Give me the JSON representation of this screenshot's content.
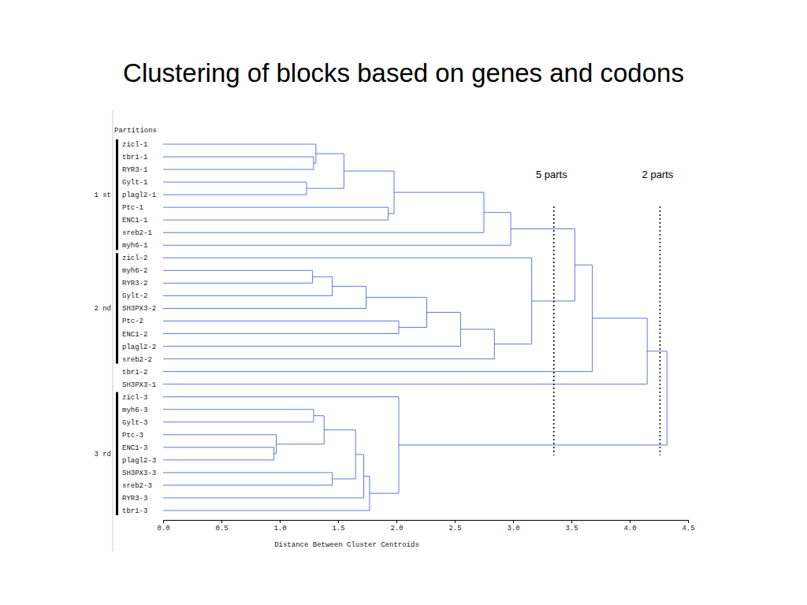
{
  "chart_data": {
    "type": "dendrogram",
    "title": "Clustering of blocks based on genes and codons",
    "x_label": "Distance Between Cluster Centroids",
    "color": "#6478d8",
    "xlim": [
      0,
      4.5
    ],
    "xticks": [
      {
        "value": 0,
        "label": "0.0"
      },
      {
        "value": 0.5,
        "label": "0.5"
      },
      {
        "value": 1,
        "label": "1.0"
      },
      {
        "value": 1.5,
        "label": "1.5"
      },
      {
        "value": 2,
        "label": "2.0"
      },
      {
        "value": 2.5,
        "label": "2.5"
      },
      {
        "value": 3,
        "label": "3.0"
      },
      {
        "value": 3.5,
        "label": "3.5"
      },
      {
        "value": 4,
        "label": "4.0"
      },
      {
        "value": 4.5,
        "label": "4.5"
      }
    ],
    "leaves": [
      "zicl-1",
      "tbr1-1",
      "RYR3-1",
      "Gylt-1",
      "plagl2-1",
      "Ptc-1",
      "ENC1-1",
      "sreb2-1",
      "myh6-1",
      "zicl-2",
      "myh6-2",
      "RYR3-2",
      "Gylt-2",
      "SH3PX3-2",
      "Ptc-2",
      "ENC1-2",
      "plagl2-2",
      "sreb2-2",
      "tbr1-2",
      "SH3PX3-1",
      "zicl-3",
      "myh6-3",
      "Gylt-3",
      "Ptc-3",
      "ENC1-3",
      "plagl2-3",
      "SH3PX3-3",
      "sreb2-3",
      "RYR3-3",
      "tbr1-3"
    ],
    "merges": [
      {
        "left": 1,
        "right": 2,
        "height": 1.29
      },
      {
        "left": 0,
        "right": 30,
        "height": 1.31
      },
      {
        "left": 3,
        "right": 4,
        "height": 1.23
      },
      {
        "left": 31,
        "right": 32,
        "height": 1.55
      },
      {
        "left": 5,
        "right": 6,
        "height": 1.93
      },
      {
        "left": 33,
        "right": 34,
        "height": 1.98
      },
      {
        "left": 35,
        "right": 7,
        "height": 2.75
      },
      {
        "left": 36,
        "right": 8,
        "height": 2.98
      },
      {
        "left": 10,
        "right": 11,
        "height": 1.28
      },
      {
        "left": 38,
        "right": 12,
        "height": 1.45
      },
      {
        "left": 39,
        "right": 13,
        "height": 1.74
      },
      {
        "left": 14,
        "right": 15,
        "height": 2.02
      },
      {
        "left": 40,
        "right": 41,
        "height": 2.26
      },
      {
        "left": 42,
        "right": 16,
        "height": 2.55
      },
      {
        "left": 43,
        "right": 17,
        "height": 2.84
      },
      {
        "left": 9,
        "right": 44,
        "height": 3.16
      },
      {
        "left": 37,
        "right": 45,
        "height": 3.53
      },
      {
        "left": 46,
        "right": 18,
        "height": 3.68
      },
      {
        "left": 47,
        "right": 19,
        "height": 4.15
      },
      {
        "left": 21,
        "right": 22,
        "height": 1.29
      },
      {
        "left": 24,
        "right": 25,
        "height": 0.95
      },
      {
        "left": 23,
        "right": 50,
        "height": 0.97
      },
      {
        "left": 49,
        "right": 51,
        "height": 1.38
      },
      {
        "left": 26,
        "right": 27,
        "height": 1.45
      },
      {
        "left": 52,
        "right": 53,
        "height": 1.65
      },
      {
        "left": 54,
        "right": 28,
        "height": 1.72
      },
      {
        "left": 55,
        "right": 29,
        "height": 1.77
      },
      {
        "left": 20,
        "right": 56,
        "height": 2.02
      },
      {
        "left": 48,
        "right": 57,
        "height": 4.32
      }
    ],
    "partition_title": "Partitions",
    "partitions": [
      {
        "label": "1 st",
        "first": 0,
        "last": 8
      },
      {
        "label": "2 nd",
        "first": 9,
        "last": 17
      },
      {
        "label": "3 rd",
        "first": 20,
        "last": 29
      }
    ],
    "cuts": [
      {
        "label": "5 parts",
        "value": 3.35
      },
      {
        "label": "2 parts",
        "value": 4.26
      }
    ]
  }
}
